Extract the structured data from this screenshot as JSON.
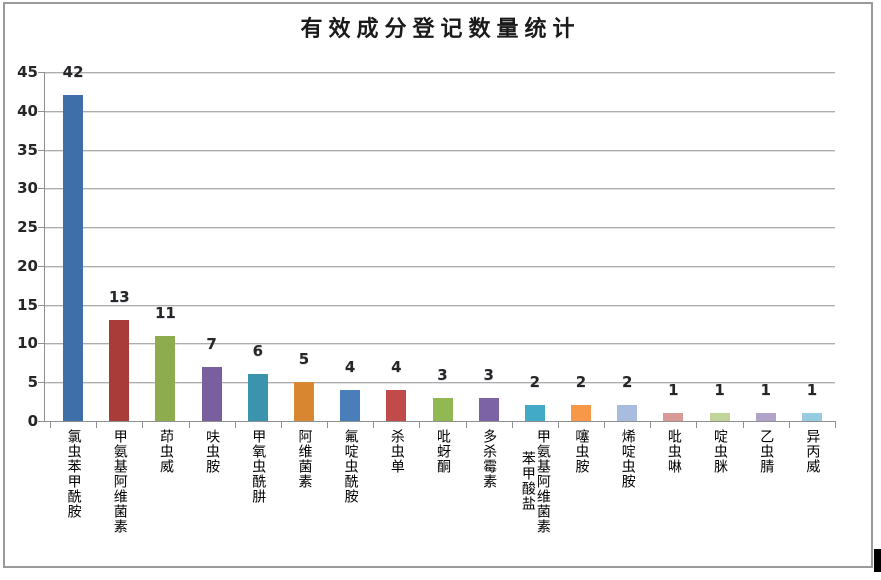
{
  "chart_data": {
    "type": "bar",
    "title": "有效成分登记数量统计",
    "xlabel": "",
    "ylabel": "",
    "legend": null,
    "grid": true,
    "ylim": [
      0,
      45
    ],
    "ytick_interval": 5,
    "yticks": [
      0,
      5,
      10,
      15,
      20,
      25,
      30,
      35,
      40,
      45
    ],
    "categories": [
      "氯虫苯甲酰胺",
      "甲氨基阿维菌素",
      "茚虫威",
      "呋虫胺",
      "甲氧虫酰肼",
      "阿维菌素",
      "氟啶虫酰胺",
      "杀虫单",
      "吡蚜酮",
      "多杀霉素",
      "甲氨基阿维菌素苯甲酸盐",
      "噻虫胺",
      "烯啶虫胺",
      "吡虫啉",
      "啶虫脒",
      "乙虫腈",
      "异丙威"
    ],
    "values": [
      42,
      13,
      11,
      7,
      6,
      5,
      4,
      4,
      3,
      3,
      2,
      2,
      2,
      1,
      1,
      1,
      1
    ],
    "bar_colors": [
      "#3F6FA8",
      "#A93C39",
      "#8CAC4E",
      "#7A5F9E",
      "#3B93AD",
      "#D8862F",
      "#4A7EBB",
      "#C14A4A",
      "#92B854",
      "#7C63A5",
      "#42AAC6",
      "#F79849",
      "#A8BCDE",
      "#D89A97",
      "#C1D59B",
      "#B1A4C8",
      "#97CCDF"
    ],
    "colors": {
      "gridline": "#ADADAD",
      "axis": "#8F8F8F",
      "title_text": "#1A1A1A",
      "value_label_text": "#262626",
      "category_label_text": "#000000",
      "frame_border": "#9A9A9A",
      "corner_artifact": "#000000",
      "background": "#FFFFFF"
    }
  }
}
